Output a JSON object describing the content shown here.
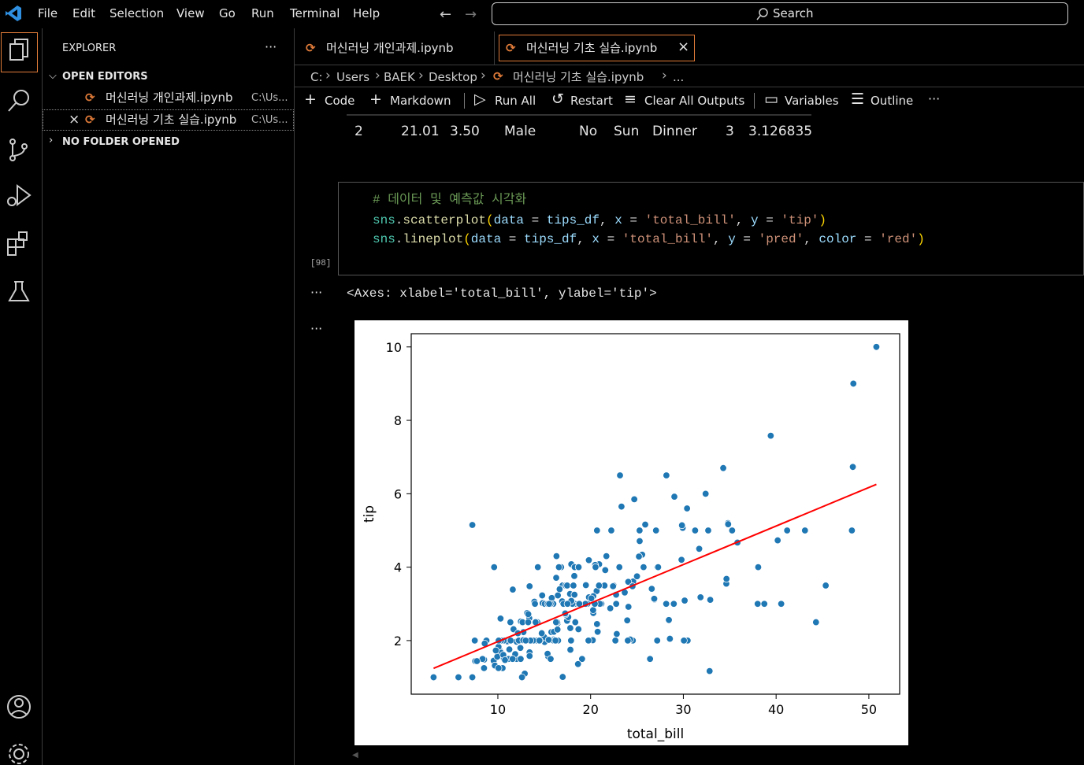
{
  "menu": [
    "File",
    "Edit",
    "Selection",
    "View",
    "Go",
    "Run",
    "Terminal",
    "Help"
  ],
  "search": "Search",
  "explorer": {
    "title": "EXPLORER",
    "open_editors": "OPEN EDITORS",
    "files": [
      {
        "name": "머신러닝 개인과제.ipynb",
        "path": "C:\\Us..."
      },
      {
        "name": "머신러닝 기초 실습.ipynb",
        "path": "C:\\Us..."
      }
    ],
    "no_folder": "NO FOLDER OPENED"
  },
  "tabs": [
    "머신러닝 개인과제.ipynb",
    "머신러닝 기초 실습.ipynb"
  ],
  "breadcrumb": [
    "C:",
    "Users",
    "BAEK",
    "Desktop",
    "머신러닝 기초 실습.ipynb",
    "..."
  ],
  "toolbar": [
    "Code",
    "Markdown",
    "Run All",
    "Restart",
    "Clear All Outputs",
    "Variables",
    "Outline"
  ],
  "output_table": {
    "row": [
      "2",
      "21.01",
      "3.50",
      "Male",
      "No",
      "Sun",
      "Dinner",
      "3",
      "3.126835"
    ]
  },
  "cell": {
    "counter": "[98]",
    "lines": [
      [
        "# 데이터 및 예측값 시각화"
      ],
      [
        "sns",
        ".",
        "scatterplot",
        "(",
        "data",
        " = ",
        "tips_df",
        ", ",
        "x",
        " = ",
        "'total_bill'",
        ", ",
        "y",
        " = ",
        "'tip'",
        ")"
      ],
      [
        "sns",
        ".",
        "lineplot",
        "(",
        "data",
        " = ",
        "tips_df",
        ", ",
        "x",
        " = ",
        "'total_bill'",
        ", ",
        "y",
        " = ",
        "'pred'",
        ", ",
        "color",
        " = ",
        "'red'",
        ")"
      ]
    ]
  },
  "output_text": "<Axes: xlabel='total_bill', ylabel='tip'>",
  "chart_data": {
    "type": "scatter",
    "x_label": "total_bill",
    "y_label": "tip",
    "xlim": [
      0.66,
      53.32
    ],
    "ylim": [
      0.54,
      10.36
    ],
    "xticks": [
      10,
      20,
      30,
      40,
      50
    ],
    "yticks": [
      2,
      4,
      6,
      8,
      10
    ],
    "series": [
      {
        "type": "scatter",
        "color": "#1f77b4",
        "x": [
          16.99,
          10.34,
          21.01,
          23.68,
          24.59,
          25.29,
          8.77,
          26.88,
          15.04,
          14.78,
          10.27,
          35.26,
          15.42,
          18.43,
          14.83,
          21.58,
          10.33,
          16.29,
          16.97,
          20.65,
          17.92,
          20.29,
          15.77,
          39.42,
          19.82,
          17.81,
          13.37,
          12.69,
          21.7,
          19.65,
          9.55,
          18.35,
          15.06,
          20.69,
          17.78,
          24.06,
          16.31,
          16.93,
          18.69,
          31.27,
          16.04,
          17.46,
          13.94,
          9.68,
          30.4,
          18.29,
          22.23,
          32.4,
          28.55,
          18.04,
          12.54,
          10.29,
          34.81,
          9.94,
          25.56,
          19.49,
          38.01,
          26.41,
          11.24,
          48.27,
          20.29,
          13.81,
          11.02,
          18.29,
          17.59,
          20.08,
          16.45,
          3.07,
          20.23,
          15.01,
          12.02,
          17.07,
          26.86,
          25.28,
          14.73,
          10.51,
          17.92,
          27.2,
          22.76,
          17.29,
          19.44,
          16.66,
          10.07,
          32.68,
          15.98,
          34.83,
          13.03,
          18.28,
          24.71,
          21.16,
          28.97,
          22.49,
          5.75,
          16.32,
          22.75,
          40.17,
          27.28,
          12.03,
          21.01,
          12.46,
          11.35,
          15.38,
          44.3,
          22.42,
          20.92,
          15.36,
          20.49,
          25.21,
          18.24,
          14.31,
          14.0,
          7.25,
          38.07,
          23.95,
          25.71,
          17.31,
          29.93,
          10.65,
          12.43,
          24.08,
          11.69,
          13.42,
          14.26,
          15.95,
          12.48,
          29.8,
          8.52,
          14.52,
          11.38,
          22.82,
          19.08,
          20.27,
          11.17,
          12.26,
          18.26,
          8.51,
          10.33,
          14.15,
          16.0,
          13.16,
          17.47,
          34.3,
          41.19,
          27.05,
          16.43,
          8.35,
          18.64,
          11.87,
          9.78,
          7.51,
          14.07,
          13.13,
          17.26,
          24.55,
          19.77,
          29.85,
          48.17,
          25.0,
          13.39,
          16.49,
          21.5,
          12.66,
          16.21,
          13.81,
          17.51,
          24.52,
          20.76,
          31.71,
          10.59,
          10.63,
          50.81,
          15.81,
          7.25,
          31.85,
          16.82,
          32.9,
          17.89,
          14.48,
          9.6,
          34.63,
          34.65,
          23.33,
          45.35,
          23.17,
          40.55,
          20.69,
          20.9,
          30.46,
          18.15,
          23.1,
          15.69,
          19.81,
          28.44,
          15.48,
          16.58,
          7.56,
          10.34,
          43.11,
          13.0,
          13.51,
          18.71,
          12.74,
          13.0,
          16.4,
          20.53,
          16.47,
          26.59,
          38.73,
          24.27,
          12.76,
          30.06,
          25.89,
          48.33,
          13.27,
          28.17,
          12.9,
          28.15,
          11.59,
          7.74,
          30.14,
          12.16,
          13.42,
          8.58,
          15.98,
          13.42,
          16.27,
          10.09,
          20.45,
          13.28,
          22.12,
          24.01,
          15.69,
          11.61,
          10.77,
          15.53,
          10.07,
          12.6,
          32.83,
          35.83,
          29.03,
          27.18,
          22.67,
          17.82,
          18.78
        ],
        "values": [
          1.01,
          1.66,
          3.5,
          3.31,
          3.61,
          4.71,
          2.0,
          3.12,
          1.96,
          3.23,
          1.71,
          5.0,
          1.57,
          3.0,
          3.02,
          3.92,
          1.67,
          3.71,
          3.5,
          3.35,
          4.08,
          2.75,
          2.23,
          7.58,
          3.18,
          2.34,
          2.0,
          2.0,
          4.3,
          3.0,
          1.45,
          2.5,
          3.0,
          2.45,
          3.27,
          3.6,
          2.0,
          3.07,
          2.31,
          5.0,
          2.24,
          2.54,
          3.06,
          1.32,
          5.6,
          3.0,
          5.0,
          6.0,
          2.05,
          3.0,
          2.5,
          2.6,
          5.2,
          1.56,
          4.34,
          3.51,
          3.0,
          1.5,
          1.76,
          6.73,
          3.21,
          2.0,
          1.98,
          3.76,
          2.64,
          3.15,
          2.47,
          1.0,
          2.01,
          2.09,
          1.97,
          3.0,
          3.14,
          5.0,
          2.2,
          1.25,
          3.08,
          4.0,
          3.0,
          2.71,
          3.0,
          3.4,
          1.83,
          5.0,
          2.03,
          5.17,
          2.0,
          4.0,
          5.85,
          3.0,
          3.0,
          3.5,
          1.0,
          4.3,
          3.25,
          4.73,
          4.0,
          1.5,
          3.0,
          1.5,
          2.5,
          3.0,
          2.5,
          3.48,
          4.08,
          1.64,
          4.06,
          4.29,
          3.76,
          4.0,
          3.0,
          1.0,
          4.0,
          2.55,
          4.0,
          3.5,
          5.07,
          1.5,
          1.8,
          2.92,
          2.31,
          1.68,
          2.5,
          2.0,
          2.52,
          4.2,
          1.48,
          2.0,
          2.0,
          2.18,
          1.5,
          2.83,
          1.5,
          2.0,
          3.25,
          1.25,
          2.0,
          2.0,
          2.0,
          2.75,
          3.5,
          6.7,
          5.0,
          5.0,
          2.3,
          1.5,
          1.36,
          1.63,
          1.73,
          2.0,
          2.5,
          2.0,
          2.74,
          2.0,
          2.0,
          5.14,
          5.0,
          3.75,
          2.61,
          2.0,
          3.5,
          2.5,
          2.0,
          2.0,
          3.0,
          3.48,
          2.24,
          4.5,
          1.61,
          2.0,
          10.0,
          3.16,
          5.15,
          3.18,
          4.0,
          3.11,
          2.0,
          2.0,
          4.0,
          3.55,
          3.68,
          5.65,
          3.5,
          6.5,
          3.0,
          5.0,
          3.5,
          2.0,
          3.5,
          4.0,
          1.5,
          4.19,
          2.56,
          2.02,
          4.0,
          1.44,
          2.0,
          5.0,
          2.0,
          2.0,
          4.0,
          2.01,
          2.0,
          2.5,
          4.0,
          3.23,
          3.41,
          3.0,
          2.03,
          2.23,
          2.0,
          5.16,
          9.0,
          2.5,
          6.5,
          1.1,
          3.0,
          1.5,
          1.44,
          3.09,
          2.2,
          3.48,
          1.92,
          3.0,
          1.58,
          2.5,
          2.0,
          3.0,
          2.72,
          2.88,
          2.0,
          3.0,
          3.39,
          1.47,
          3.0,
          1.25,
          1.0,
          1.17,
          4.67,
          5.92,
          2.0,
          2.0,
          1.75,
          3.0
        ]
      },
      {
        "type": "line",
        "color": "#ff0000",
        "x": [
          3.07,
          50.81
        ],
        "values": [
          1.243,
          6.256
        ]
      }
    ]
  }
}
